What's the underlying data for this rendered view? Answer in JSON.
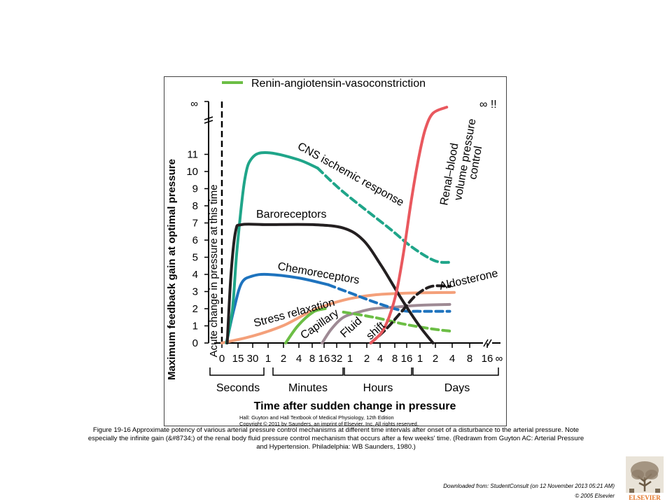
{
  "chart_data": {
    "type": "line",
    "ylabel": "Maximum feedback gain at optimal pressure",
    "xlabel": "Time after sudden change in pressure",
    "y_ticks": [
      "0",
      "1",
      "2",
      "3",
      "4",
      "5",
      "6",
      "7",
      "8",
      "9",
      "10",
      "11"
    ],
    "y_infinity": "∞",
    "x_tick_labels": [
      "0",
      "15",
      "30",
      "1",
      "2",
      "4",
      "8",
      "16",
      "32",
      "1",
      "2",
      "4",
      "8",
      "16",
      "1",
      "2",
      "4",
      "8",
      "16",
      "∞"
    ],
    "x_units": [
      "Seconds",
      "Minutes",
      "Hours",
      "Days"
    ],
    "acute_label": "Acute change in pressure at this time",
    "legend": {
      "label": "Renin-angiotensin-vasoconstriction",
      "color": "#6cbe45"
    },
    "curve_labels": {
      "cns": "CNS ischemic response",
      "baro": "Baroreceptors",
      "chemo": "Chemoreceptors",
      "stress": "Stress relaxation",
      "capillary": "Capillary",
      "fluid": "Fluid",
      "shift": "shift",
      "renal1": "Renal–blood",
      "renal2": "volume pressure",
      "renal3": "control",
      "aldo": "Aldosterone",
      "renal_gain": "∞ !!"
    },
    "series": [
      {
        "key": "cns",
        "name": "CNS ischemic response",
        "color": "#1fa589",
        "points": [
          [
            0.3,
            0
          ],
          [
            0.7,
            2
          ],
          [
            1.0,
            5.5
          ],
          [
            1.5,
            9.5
          ],
          [
            2,
            10.8
          ],
          [
            3,
            11.1
          ],
          [
            5,
            10.7
          ],
          [
            6.3,
            10.2
          ],
          [
            8,
            8.8
          ],
          [
            11,
            6.7
          ],
          [
            12.5,
            5.6
          ],
          [
            14,
            4.8
          ],
          [
            15,
            4.7
          ]
        ],
        "dashed_from": 6.3
      },
      {
        "key": "baro",
        "name": "Baroreceptors",
        "color": "#231f20",
        "points": [
          [
            0.35,
            0
          ],
          [
            0.6,
            4
          ],
          [
            0.9,
            6.5
          ],
          [
            1.3,
            6.9
          ],
          [
            3,
            6.9
          ],
          [
            6,
            6.9
          ],
          [
            8,
            6.7
          ],
          [
            9.3,
            6
          ],
          [
            10.5,
            4.5
          ],
          [
            11.8,
            2.6
          ],
          [
            13,
            1
          ],
          [
            13.9,
            0
          ]
        ]
      },
      {
        "key": "chemo",
        "name": "Chemoreceptors",
        "color": "#1e73be",
        "points": [
          [
            0.3,
            0
          ],
          [
            0.8,
            2
          ],
          [
            1.3,
            3.5
          ],
          [
            2,
            3.9
          ],
          [
            3,
            4
          ],
          [
            5,
            3.8
          ],
          [
            7,
            3.4
          ],
          [
            8.5,
            2.9
          ],
          [
            10,
            2.4
          ],
          [
            11.8,
            1.9
          ],
          [
            13,
            1.85
          ],
          [
            15,
            1.85
          ]
        ],
        "dashed_from": 7
      },
      {
        "key": "stress",
        "name": "Stress relaxation",
        "color": "#f4a07a",
        "points": [
          [
            0,
            0
          ],
          [
            2,
            0.4
          ],
          [
            4,
            1
          ],
          [
            6,
            1.9
          ],
          [
            8,
            2.5
          ],
          [
            10,
            2.8
          ],
          [
            12,
            2.9
          ],
          [
            15.3,
            2.95
          ]
        ]
      },
      {
        "key": "capillary",
        "name": "Capillary",
        "color": "#6cbe45",
        "points": [
          [
            4.2,
            0
          ],
          [
            5,
            1
          ],
          [
            6,
            1.8
          ],
          [
            6.8,
            2
          ],
          [
            8,
            1.8
          ],
          [
            10,
            1.5
          ],
          [
            12,
            1.1
          ],
          [
            14,
            0.8
          ],
          [
            15,
            0.7
          ]
        ],
        "dashed_from": 6.9
      },
      {
        "key": "fluid",
        "name": "Fluid shift",
        "color": "#9e8a94",
        "points": [
          [
            6.6,
            0
          ],
          [
            7.2,
            0.8
          ],
          [
            8,
            1.5
          ],
          [
            9,
            1.8
          ],
          [
            10,
            2
          ],
          [
            11.5,
            2.1
          ],
          [
            13,
            2.2
          ],
          [
            15,
            2.25
          ]
        ]
      },
      {
        "key": "aldo",
        "name": "Aldosterone",
        "color": "#231f20",
        "points": [
          [
            9.8,
            0
          ],
          [
            10.8,
            0.8
          ],
          [
            11.8,
            1.8
          ],
          [
            12.8,
            2.8
          ],
          [
            13.8,
            3.3
          ],
          [
            15,
            3.3
          ]
        ],
        "dashed_from": 9.8
      },
      {
        "key": "renal",
        "name": "Renal–blood volume pressure control",
        "color": "#e9585e",
        "points": [
          [
            9.8,
            0
          ],
          [
            10.5,
            0.6
          ],
          [
            11,
            1.5
          ],
          [
            11.5,
            3
          ],
          [
            12,
            5.5
          ],
          [
            12.5,
            8.5
          ],
          [
            13,
            11
          ],
          [
            13.4,
            12.5
          ],
          [
            13.9,
            13.4
          ],
          [
            14.8,
            13.75
          ]
        ]
      }
    ]
  },
  "credit": {
    "line1": "Hall: Guyton and Hall Textbook of Medical Physiology, 12th Edition",
    "line2": "Copyright © 2011 by Saunders, an imprint of Elsevier, Inc. All rights reserved."
  },
  "caption": {
    "line1": "Figure 19-16 Approximate potency of various arterial pressure control mechanisms at different time intervals after onset of a disturbance to the arterial pressure. Note",
    "line2": "especially the infinite gain (&#8734;) of the renal body fluid pressure control mechanism that occurs after a few weeks' time. (Redrawn from Guyton AC: Arterial Pressure",
    "line3": "and Hypertension. Philadelphia: WB Saunders, 1980.)"
  },
  "footer": {
    "downloaded": "Downloaded from: StudentConsult (on 12 November 2013 05:21 AM)",
    "copyright": "© 2005 Elsevier",
    "logo_text": "ELSEVIER"
  }
}
